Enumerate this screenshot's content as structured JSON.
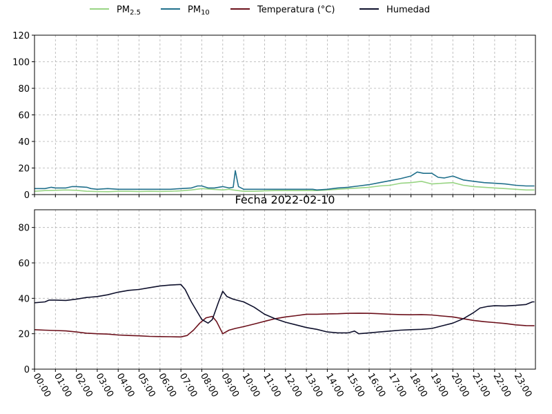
{
  "legend": {
    "placement": "top-center",
    "entries": [
      {
        "label": "PM",
        "sub": "2.5",
        "color": "#98d483"
      },
      {
        "label": "PM",
        "sub": "10",
        "color": "#1f6f8b"
      },
      {
        "label": "Temperatura (°C)",
        "sub": "",
        "color": "#6b0f1a"
      },
      {
        "label": "Humedad",
        "sub": "",
        "color": "#0d0f2b"
      }
    ]
  },
  "chart_data": [
    {
      "type": "line",
      "title": "",
      "xlabel": "",
      "ylabel": "",
      "ylim": [
        0,
        120
      ],
      "yticks": [
        "0",
        "20",
        "40",
        "60",
        "80",
        "100",
        "120"
      ],
      "grid": true,
      "x_note": "hours of day 2022-02-10",
      "series": [
        {
          "name": "PM2.5",
          "color": "#98d483",
          "points": [
            [
              0,
              2.5
            ],
            [
              0.5,
              3
            ],
            [
              1,
              3.2
            ],
            [
              1.5,
              3.5
            ],
            [
              2,
              3.2
            ],
            [
              2.5,
              2.5
            ],
            [
              3,
              2.3
            ],
            [
              3.5,
              2.2
            ],
            [
              4,
              2.5
            ],
            [
              4.5,
              2.5
            ],
            [
              5,
              2.3
            ],
            [
              5.5,
              2.5
            ],
            [
              6,
              2.4
            ],
            [
              6.5,
              2.5
            ],
            [
              7,
              2.8
            ],
            [
              7.5,
              3.5
            ],
            [
              8,
              4.5
            ],
            [
              8.5,
              4
            ],
            [
              9,
              3.5
            ],
            [
              9.3,
              4
            ],
            [
              9.5,
              3.5
            ],
            [
              10,
              2.5
            ],
            [
              10.5,
              2.5
            ],
            [
              11,
              2.8
            ],
            [
              11.5,
              3
            ],
            [
              12,
              3
            ],
            [
              12.5,
              3
            ],
            [
              13,
              3
            ],
            [
              13.5,
              3
            ],
            [
              14,
              3.5
            ],
            [
              14.5,
              4
            ],
            [
              15,
              4.5
            ],
            [
              15.5,
              5
            ],
            [
              16,
              5.5
            ],
            [
              16.5,
              6.5
            ],
            [
              17,
              7
            ],
            [
              17.5,
              8.5
            ],
            [
              18,
              9
            ],
            [
              18.5,
              10
            ],
            [
              19,
              8
            ],
            [
              19.5,
              8.5
            ],
            [
              20,
              9
            ],
            [
              20.5,
              7
            ],
            [
              21,
              6
            ],
            [
              21.5,
              5.5
            ],
            [
              22,
              5
            ],
            [
              22.5,
              4.5
            ],
            [
              23,
              4
            ],
            [
              23.5,
              3.5
            ],
            [
              23.9,
              3.5
            ]
          ]
        },
        {
          "name": "PM10",
          "color": "#1f6f8b",
          "points": [
            [
              0,
              4.5
            ],
            [
              0.5,
              4.5
            ],
            [
              0.8,
              5.5
            ],
            [
              1,
              5
            ],
            [
              1.5,
              5
            ],
            [
              1.8,
              6
            ],
            [
              2,
              6
            ],
            [
              2.5,
              5.5
            ],
            [
              2.7,
              4.5
            ],
            [
              3,
              4
            ],
            [
              3.5,
              4.5
            ],
            [
              4,
              4
            ],
            [
              4.5,
              4
            ],
            [
              5,
              4
            ],
            [
              5.5,
              4
            ],
            [
              6,
              4
            ],
            [
              6.5,
              4
            ],
            [
              7,
              4.5
            ],
            [
              7.5,
              5
            ],
            [
              7.8,
              6.5
            ],
            [
              8,
              6.5
            ],
            [
              8.3,
              5
            ],
            [
              8.6,
              5
            ],
            [
              9,
              6
            ],
            [
              9.3,
              5
            ],
            [
              9.5,
              5.5
            ],
            [
              9.6,
              18
            ],
            [
              9.75,
              6
            ],
            [
              10,
              4
            ],
            [
              10.5,
              4
            ],
            [
              11,
              4
            ],
            [
              11.5,
              4
            ],
            [
              12,
              4
            ],
            [
              12.5,
              4
            ],
            [
              13,
              4
            ],
            [
              13.3,
              4
            ],
            [
              13.5,
              3.5
            ],
            [
              14,
              4
            ],
            [
              14.5,
              5
            ],
            [
              15,
              5.5
            ],
            [
              15.5,
              6.5
            ],
            [
              16,
              7.5
            ],
            [
              16.5,
              9
            ],
            [
              17,
              10.5
            ],
            [
              17.5,
              12
            ],
            [
              18,
              14
            ],
            [
              18.3,
              17
            ],
            [
              18.6,
              16
            ],
            [
              19,
              16
            ],
            [
              19.3,
              13
            ],
            [
              19.6,
              12.5
            ],
            [
              20,
              14
            ],
            [
              20.5,
              11
            ],
            [
              21,
              10
            ],
            [
              21.5,
              9
            ],
            [
              22,
              8.5
            ],
            [
              22.5,
              8
            ],
            [
              23,
              7
            ],
            [
              23.5,
              6.5
            ],
            [
              23.9,
              6.5
            ]
          ]
        }
      ]
    },
    {
      "type": "line",
      "title": "Fecha 2022-02-10",
      "xlabel": "",
      "ylabel": "",
      "ylim": [
        0,
        90
      ],
      "yticks": [
        "0",
        "20",
        "40",
        "60",
        "80"
      ],
      "grid": true,
      "xticks": [
        "00:00",
        "01:00",
        "02:00",
        "03:00",
        "04:00",
        "05:00",
        "06:00",
        "07:00",
        "08:00",
        "09:00",
        "10:00",
        "11:00",
        "12:00",
        "13:00",
        "14:00",
        "15:00",
        "16:00",
        "17:00",
        "18:00",
        "19:00",
        "20:00",
        "21:00",
        "22:00",
        "23:00"
      ],
      "series": [
        {
          "name": "Temperatura (°C)",
          "color": "#6b0f1a",
          "points": [
            [
              0,
              22.3
            ],
            [
              0.5,
              22
            ],
            [
              1,
              21.8
            ],
            [
              1.5,
              21.6
            ],
            [
              2,
              21
            ],
            [
              2.5,
              20.3
            ],
            [
              3,
              20
            ],
            [
              3.5,
              19.8
            ],
            [
              4,
              19.3
            ],
            [
              4.5,
              19
            ],
            [
              5,
              18.8
            ],
            [
              5.5,
              18.5
            ],
            [
              6,
              18.4
            ],
            [
              6.5,
              18.3
            ],
            [
              7,
              18.2
            ],
            [
              7.3,
              19
            ],
            [
              7.6,
              22
            ],
            [
              7.9,
              26
            ],
            [
              8.2,
              29
            ],
            [
              8.5,
              29.8
            ],
            [
              8.7,
              27
            ],
            [
              9,
              20
            ],
            [
              9.3,
              22
            ],
            [
              9.6,
              23
            ],
            [
              10,
              24
            ],
            [
              10.5,
              25.5
            ],
            [
              11,
              27
            ],
            [
              11.5,
              28.5
            ],
            [
              12,
              29.5
            ],
            [
              12.5,
              30.2
            ],
            [
              13,
              31
            ],
            [
              13.5,
              31
            ],
            [
              14,
              31.2
            ],
            [
              14.5,
              31.3
            ],
            [
              15,
              31.5
            ],
            [
              15.5,
              31.6
            ],
            [
              16,
              31.5
            ],
            [
              16.5,
              31.3
            ],
            [
              17,
              31
            ],
            [
              17.5,
              30.8
            ],
            [
              18,
              30.7
            ],
            [
              18.5,
              30.8
            ],
            [
              19,
              30.6
            ],
            [
              19.5,
              30
            ],
            [
              20,
              29.5
            ],
            [
              20.5,
              28.5
            ],
            [
              21,
              27.5
            ],
            [
              21.5,
              26.8
            ],
            [
              22,
              26.3
            ],
            [
              22.5,
              25.8
            ],
            [
              23,
              25
            ],
            [
              23.5,
              24.6
            ],
            [
              23.9,
              24.5
            ]
          ]
        },
        {
          "name": "Humedad",
          "color": "#0d0f2b",
          "points": [
            [
              0,
              37.5
            ],
            [
              0.5,
              38
            ],
            [
              0.7,
              39
            ],
            [
              1,
              39
            ],
            [
              1.5,
              38.8
            ],
            [
              2,
              39.5
            ],
            [
              2.5,
              40.5
            ],
            [
              3,
              41
            ],
            [
              3.5,
              42
            ],
            [
              4,
              43.5
            ],
            [
              4.5,
              44.5
            ],
            [
              5,
              45
            ],
            [
              5.5,
              46
            ],
            [
              6,
              47
            ],
            [
              6.5,
              47.5
            ],
            [
              7,
              47.8
            ],
            [
              7.2,
              45
            ],
            [
              7.5,
              38
            ],
            [
              7.8,
              32
            ],
            [
              8,
              28
            ],
            [
              8.3,
              26
            ],
            [
              8.5,
              28
            ],
            [
              8.8,
              38
            ],
            [
              9,
              44
            ],
            [
              9.2,
              41
            ],
            [
              9.5,
              39.5
            ],
            [
              10,
              38
            ],
            [
              10.5,
              35
            ],
            [
              11,
              31
            ],
            [
              11.5,
              28.5
            ],
            [
              12,
              26.5
            ],
            [
              12.5,
              25
            ],
            [
              13,
              23.5
            ],
            [
              13.5,
              22.5
            ],
            [
              14,
              21
            ],
            [
              14.5,
              20.5
            ],
            [
              15,
              20.5
            ],
            [
              15.3,
              21.5
            ],
            [
              15.5,
              20
            ],
            [
              16,
              20.5
            ],
            [
              16.5,
              21
            ],
            [
              17,
              21.5
            ],
            [
              17.5,
              22
            ],
            [
              18,
              22.3
            ],
            [
              18.5,
              22.5
            ],
            [
              19,
              23
            ],
            [
              19.5,
              24.5
            ],
            [
              20,
              26
            ],
            [
              20.5,
              28.5
            ],
            [
              21,
              32
            ],
            [
              21.3,
              34.5
            ],
            [
              21.7,
              35.5
            ],
            [
              22,
              35.8
            ],
            [
              22.5,
              35.7
            ],
            [
              23,
              36
            ],
            [
              23.5,
              36.5
            ],
            [
              23.8,
              38
            ],
            [
              23.9,
              38
            ]
          ]
        }
      ]
    }
  ]
}
